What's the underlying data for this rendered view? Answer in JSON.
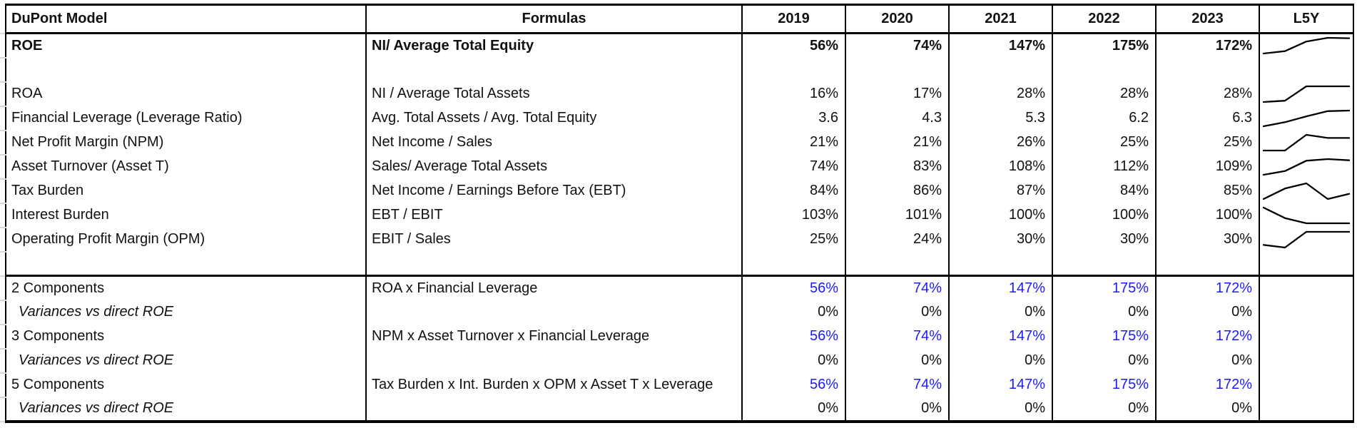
{
  "colors": {
    "accent_blue": "#1b1bff",
    "grid_black": "#000000",
    "gutter_line": "#d9d9d9"
  },
  "header": {
    "col_model": "DuPont Model",
    "col_formulas": "Formulas",
    "years": [
      "2019",
      "2020",
      "2021",
      "2022",
      "2023"
    ],
    "col_trend": "L5Y"
  },
  "rows": [
    {
      "label": "ROE",
      "formula": "NI/ Average Total Equity",
      "values": [
        "56%",
        "74%",
        "147%",
        "175%",
        "172%"
      ],
      "spark": [
        56,
        74,
        147,
        175,
        172
      ]
    },
    {
      "label": "",
      "formula": "",
      "values": [
        "",
        "",
        "",
        "",
        ""
      ]
    },
    {
      "label": "ROA",
      "formula": "NI / Average Total Assets",
      "values": [
        "16%",
        "17%",
        "28%",
        "28%",
        "28%"
      ],
      "spark": [
        16,
        17,
        28,
        28,
        28
      ]
    },
    {
      "label": "Financial Leverage (Leverage Ratio)",
      "formula": "Avg. Total Assets / Avg. Total Equity",
      "values": [
        "3.6",
        "4.3",
        "5.3",
        "6.2",
        "6.3"
      ],
      "spark": [
        3.6,
        4.3,
        5.3,
        6.2,
        6.3
      ]
    },
    {
      "label": "Net Profit Margin (NPM)",
      "formula": "Net Income / Sales",
      "values": [
        "21%",
        "21%",
        "26%",
        "25%",
        "25%"
      ],
      "spark": [
        21,
        21,
        26,
        25,
        25
      ]
    },
    {
      "label": "Asset Turnover (Asset T)",
      "formula": "Sales/ Average Total Assets",
      "values": [
        "74%",
        "83%",
        "108%",
        "112%",
        "109%"
      ],
      "spark": [
        74,
        83,
        108,
        112,
        109
      ]
    },
    {
      "label": "Tax Burden",
      "formula": "Net Income / Earnings Before Tax (EBT)",
      "values": [
        "84%",
        "86%",
        "87%",
        "84%",
        "85%"
      ],
      "spark": [
        84,
        86,
        87,
        84,
        85
      ]
    },
    {
      "label": "Interest Burden",
      "formula": "EBT / EBIT",
      "values": [
        "103%",
        "101%",
        "100%",
        "100%",
        "100%"
      ],
      "spark": [
        103,
        101,
        100,
        100,
        100
      ]
    },
    {
      "label": "Operating Profit Margin (OPM)",
      "formula": "EBIT / Sales",
      "values": [
        "25%",
        "24%",
        "30%",
        "30%",
        "30%"
      ],
      "spark": [
        25,
        24,
        30,
        30,
        30
      ]
    },
    {
      "label": "",
      "formula": "",
      "values": [
        "",
        "",
        "",
        "",
        ""
      ]
    },
    {
      "label": "2 Components",
      "formula": "ROA x Financial Leverage",
      "values": [
        "56%",
        "74%",
        "147%",
        "175%",
        "172%"
      ]
    },
    {
      "label": "Variances vs direct ROE",
      "formula": "",
      "values": [
        "0%",
        "0%",
        "0%",
        "0%",
        "0%"
      ]
    },
    {
      "label": "3 Components",
      "formula": "NPM x Asset Turnover x Financial Leverage",
      "values": [
        "56%",
        "74%",
        "147%",
        "175%",
        "172%"
      ]
    },
    {
      "label": "Variances vs direct ROE",
      "formula": "",
      "values": [
        "0%",
        "0%",
        "0%",
        "0%",
        "0%"
      ]
    },
    {
      "label": "5 Components",
      "formula": "Tax Burden x Int. Burden x OPM x Asset T x Leverage",
      "values": [
        "56%",
        "74%",
        "147%",
        "175%",
        "172%"
      ]
    },
    {
      "label": "Variances vs direct ROE",
      "formula": "",
      "values": [
        "0%",
        "0%",
        "0%",
        "0%",
        "0%"
      ]
    }
  ]
}
